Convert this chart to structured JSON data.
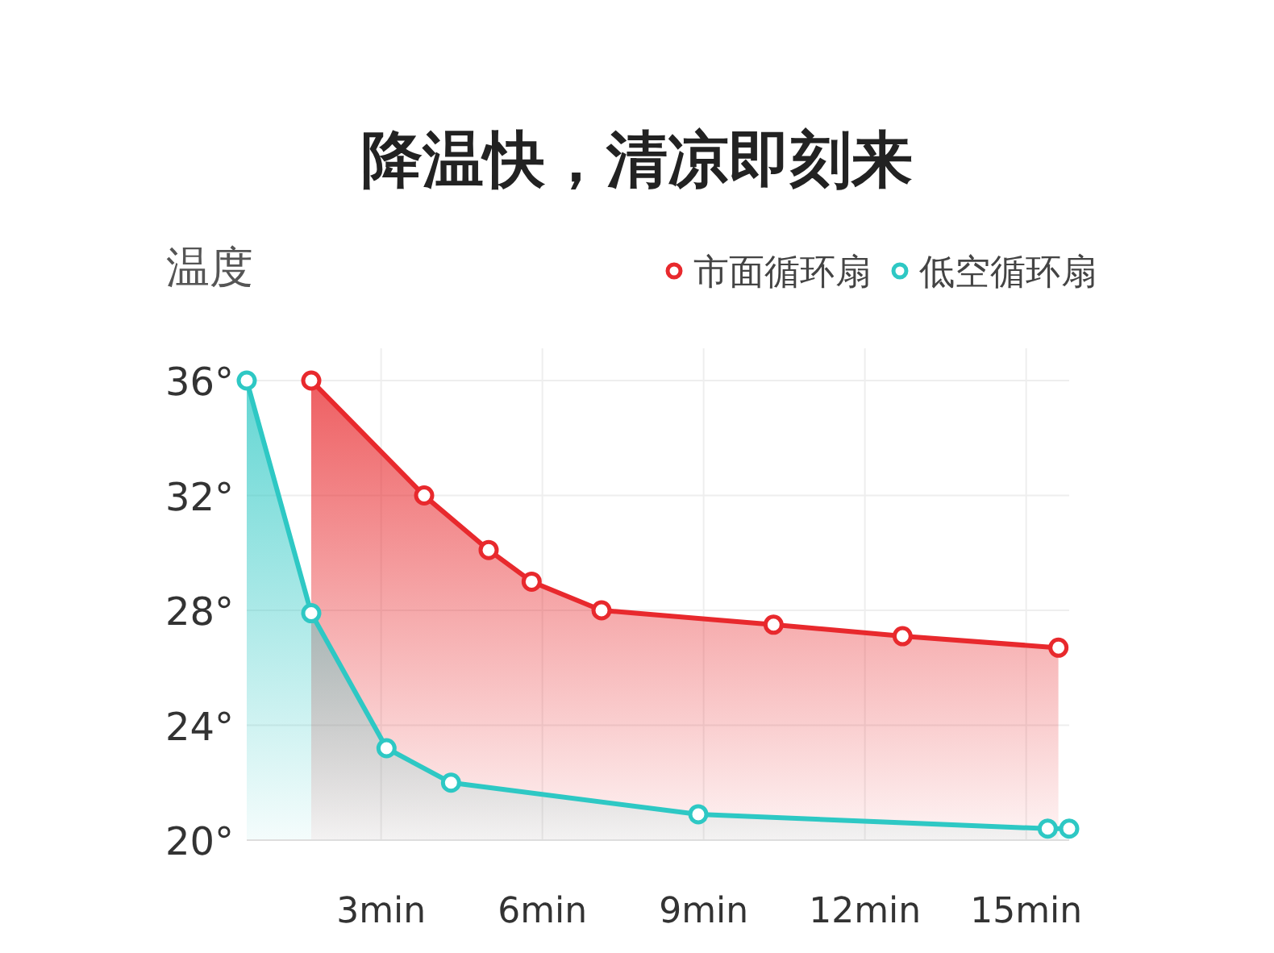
{
  "chart_data": {
    "type": "area",
    "title": "降温快，清凉即刻来",
    "ylabel": "温度",
    "xlim": [
      0.5,
      15.8
    ],
    "ylim": [
      20,
      36
    ],
    "xticks": [
      {
        "value": 3,
        "label": "3min"
      },
      {
        "value": 6,
        "label": "6min"
      },
      {
        "value": 9,
        "label": "9min"
      },
      {
        "value": 12,
        "label": "12min"
      },
      {
        "value": 15,
        "label": "15min"
      }
    ],
    "yticks": [
      {
        "value": 20,
        "label": "20°"
      },
      {
        "value": 24,
        "label": "24°"
      },
      {
        "value": 28,
        "label": "28°"
      },
      {
        "value": 32,
        "label": "32°"
      },
      {
        "value": 36,
        "label": "36°"
      }
    ],
    "grid": true,
    "legend": "top right",
    "marker": "circle",
    "series": [
      {
        "name": "市面循环扇",
        "color": "#e8292d",
        "x": [
          1.7,
          3.8,
          5.0,
          5.8,
          7.1,
          10.3,
          12.7,
          15.6
        ],
        "values": [
          36,
          32,
          30.1,
          29,
          28,
          27.5,
          27.1,
          26.7
        ]
      },
      {
        "name": "低空循环扇",
        "color": "#2ec8c4",
        "x": [
          0.5,
          1.7,
          3.1,
          4.3,
          8.9,
          15.4,
          15.8
        ],
        "values": [
          36,
          27.9,
          23.2,
          22,
          20.9,
          20.4,
          20.4
        ]
      }
    ]
  }
}
